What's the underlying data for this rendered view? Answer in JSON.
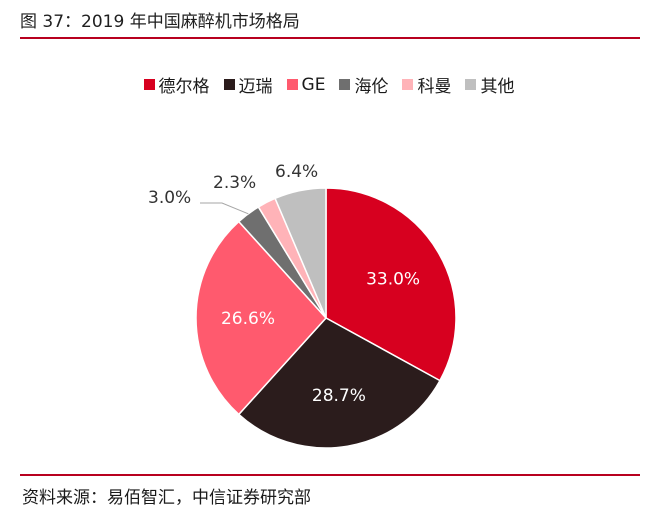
{
  "figure": {
    "title": "图 37：2019 年中国麻醉机市场格局",
    "source": "资料来源：易佰智汇，中信证券研究部"
  },
  "chart_data": {
    "type": "pie",
    "legend_position": "top",
    "slices": [
      {
        "name": "德尔格",
        "value": 33.0,
        "label": "33.0%",
        "color": "#d7001f",
        "label_color": "#ffffff"
      },
      {
        "name": "迈瑞",
        "value": 28.7,
        "label": "28.7%",
        "color": "#2b1c1c",
        "label_color": "#ffffff"
      },
      {
        "name": "GE",
        "value": 26.6,
        "label": "26.6%",
        "color": "#ff5a6e",
        "label_color": "#ffffff"
      },
      {
        "name": "海伦",
        "value": 3.0,
        "label": "3.0%",
        "color": "#6f6f6f",
        "label_color": "#333333"
      },
      {
        "name": "科曼",
        "value": 2.3,
        "label": "2.3%",
        "color": "#ffb3b8",
        "label_color": "#333333"
      },
      {
        "name": "其他",
        "value": 6.4,
        "label": "6.4%",
        "color": "#bfbfbf",
        "label_color": "#333333"
      }
    ]
  }
}
